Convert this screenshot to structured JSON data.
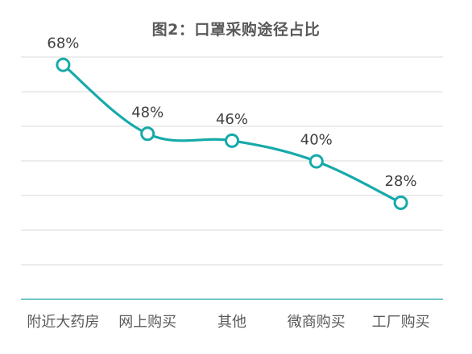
{
  "chart_data": {
    "type": "line",
    "title": "图2：口罩采购途径占比",
    "categories": [
      "附近大药房",
      "网上购买",
      "其他",
      "微商购买",
      "工厂购买"
    ],
    "values": [
      68,
      48,
      46,
      40,
      28
    ],
    "data_labels": [
      "68%",
      "48%",
      "46%",
      "40%",
      "28%"
    ],
    "ylim": [
      0,
      70
    ],
    "grid": true,
    "smooth": true,
    "legend": "none",
    "colors": {
      "line": "#16aaa9",
      "axis": "#1aa6a6",
      "grid": "#d9d9d9",
      "title": "#595959",
      "labels": "#404040"
    }
  }
}
